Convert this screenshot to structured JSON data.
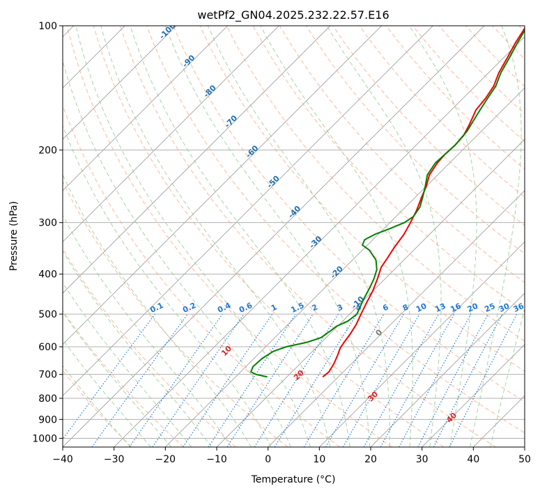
{
  "chart_data": {
    "type": "skew-t",
    "title": "wetPf2_GN04.2025.232.22.57.E16",
    "xlabel": "Temperature (°C)",
    "ylabel": "Pressure (hPa)",
    "xlim": [
      -40,
      50
    ],
    "ylim": [
      1050,
      100
    ],
    "y_scale": "log",
    "x_ticks": [
      -40,
      -30,
      -20,
      -10,
      0,
      10,
      20,
      30,
      40,
      50
    ],
    "y_ticks": [
      100,
      200,
      300,
      400,
      500,
      600,
      700,
      800,
      900,
      1000
    ],
    "grid": true,
    "colors": {
      "temperature": "#ee0000",
      "dewpoint": "#008000",
      "isotherm": "#aaaaaa",
      "dry_adiabat": "#ffa07a",
      "moist_adiabat": "#90c890",
      "mixing_ratio": "#1f77d4",
      "dry_adiabat_label": "#d62728",
      "isotherm_label": "#1f6fb0",
      "special_line": "#d2b48c"
    },
    "isotherm_labels": [
      {
        "value": -100,
        "text": "-100"
      },
      {
        "value": -90,
        "text": "-90"
      },
      {
        "value": -80,
        "text": "-80"
      },
      {
        "value": -70,
        "text": "-70"
      },
      {
        "value": -60,
        "text": "-60"
      },
      {
        "value": -50,
        "text": "-50"
      },
      {
        "value": -40,
        "text": "-40"
      },
      {
        "value": -30,
        "text": "-30"
      },
      {
        "value": -20,
        "text": "-20"
      },
      {
        "value": -10,
        "text": "-10"
      },
      {
        "value": 0,
        "text": "0"
      }
    ],
    "mixing_ratio_labels": [
      {
        "value": 0.1,
        "text": "0.1"
      },
      {
        "value": 0.2,
        "text": "0.2"
      },
      {
        "value": 0.4,
        "text": "0.4"
      },
      {
        "value": 0.6,
        "text": "0.6"
      },
      {
        "value": 1,
        "text": "1"
      },
      {
        "value": 1.5,
        "text": "1.5"
      },
      {
        "value": 2,
        "text": "2"
      },
      {
        "value": 3,
        "text": "3"
      },
      {
        "value": 4,
        "text": "4"
      },
      {
        "value": 6,
        "text": "6"
      },
      {
        "value": 8,
        "text": "8"
      },
      {
        "value": 10,
        "text": "10"
      },
      {
        "value": 13,
        "text": "13"
      },
      {
        "value": 16,
        "text": "16"
      },
      {
        "value": 20,
        "text": "20"
      },
      {
        "value": 25,
        "text": "25"
      },
      {
        "value": 30,
        "text": "30"
      },
      {
        "value": 36,
        "text": "36"
      }
    ],
    "dry_adiabat_labels": [
      {
        "value": 10,
        "text": "10"
      },
      {
        "value": 20,
        "text": "20"
      },
      {
        "value": 30,
        "text": "30"
      },
      {
        "value": 40,
        "text": "40"
      }
    ],
    "series": [
      {
        "name": "",
        "role": "temperature",
        "points": [
          {
            "p": 710,
            "t": -3.0
          },
          {
            "p": 690,
            "t": -2.8
          },
          {
            "p": 660,
            "t": -3.4
          },
          {
            "p": 630,
            "t": -4.3
          },
          {
            "p": 605,
            "t": -5.2
          },
          {
            "p": 585,
            "t": -5.6
          },
          {
            "p": 560,
            "t": -6.0
          },
          {
            "p": 530,
            "t": -6.7
          },
          {
            "p": 500,
            "t": -7.8
          },
          {
            "p": 470,
            "t": -8.9
          },
          {
            "p": 440,
            "t": -10.0
          },
          {
            "p": 410,
            "t": -11.5
          },
          {
            "p": 385,
            "t": -13.0
          },
          {
            "p": 365,
            "t": -13.6
          },
          {
            "p": 345,
            "t": -14.3
          },
          {
            "p": 320,
            "t": -15.0
          },
          {
            "p": 300,
            "t": -16.0
          },
          {
            "p": 280,
            "t": -17.2
          },
          {
            "p": 260,
            "t": -18.8
          },
          {
            "p": 245,
            "t": -20.0
          },
          {
            "p": 230,
            "t": -21.6
          },
          {
            "p": 215,
            "t": -22.4
          },
          {
            "p": 205,
            "t": -22.6
          },
          {
            "p": 195,
            "t": -22.4
          },
          {
            "p": 185,
            "t": -22.6
          },
          {
            "p": 175,
            "t": -23.5
          },
          {
            "p": 165,
            "t": -24.6
          },
          {
            "p": 160,
            "t": -25.2
          },
          {
            "p": 150,
            "t": -25.6
          },
          {
            "p": 140,
            "t": -26.4
          },
          {
            "p": 130,
            "t": -28.0
          },
          {
            "p": 120,
            "t": -29.2
          },
          {
            "p": 110,
            "t": -30.6
          },
          {
            "p": 100,
            "t": -31.8
          }
        ]
      },
      {
        "name": "",
        "role": "dewpoint",
        "points": [
          {
            "p": 710,
            "t": -13.8
          },
          {
            "p": 700,
            "t": -16.5
          },
          {
            "p": 690,
            "t": -18.0
          },
          {
            "p": 670,
            "t": -18.6
          },
          {
            "p": 640,
            "t": -18.4
          },
          {
            "p": 615,
            "t": -17.6
          },
          {
            "p": 600,
            "t": -16.0
          },
          {
            "p": 585,
            "t": -12.8
          },
          {
            "p": 570,
            "t": -11.0
          },
          {
            "p": 550,
            "t": -10.5
          },
          {
            "p": 535,
            "t": -10.2
          },
          {
            "p": 520,
            "t": -9.0
          },
          {
            "p": 500,
            "t": -8.6
          },
          {
            "p": 485,
            "t": -9.2
          },
          {
            "p": 460,
            "t": -10.2
          },
          {
            "p": 430,
            "t": -11.3
          },
          {
            "p": 410,
            "t": -12.2
          },
          {
            "p": 390,
            "t": -13.4
          },
          {
            "p": 370,
            "t": -15.4
          },
          {
            "p": 350,
            "t": -18.6
          },
          {
            "p": 340,
            "t": -21.0
          },
          {
            "p": 330,
            "t": -21.6
          },
          {
            "p": 320,
            "t": -20.6
          },
          {
            "p": 310,
            "t": -18.8
          },
          {
            "p": 300,
            "t": -17.2
          },
          {
            "p": 290,
            "t": -16.6
          },
          {
            "p": 275,
            "t": -17.2
          },
          {
            "p": 260,
            "t": -18.6
          },
          {
            "p": 245,
            "t": -20.2
          },
          {
            "p": 230,
            "t": -22.0
          },
          {
            "p": 215,
            "t": -22.8
          },
          {
            "p": 205,
            "t": -22.6
          },
          {
            "p": 195,
            "t": -22.4
          },
          {
            "p": 180,
            "t": -22.8
          },
          {
            "p": 170,
            "t": -23.6
          },
          {
            "p": 160,
            "t": -24.4
          },
          {
            "p": 150,
            "t": -25.2
          },
          {
            "p": 140,
            "t": -26.0
          },
          {
            "p": 130,
            "t": -27.6
          },
          {
            "p": 120,
            "t": -28.8
          },
          {
            "p": 110,
            "t": -30.2
          },
          {
            "p": 100,
            "t": -31.6
          }
        ]
      }
    ]
  }
}
